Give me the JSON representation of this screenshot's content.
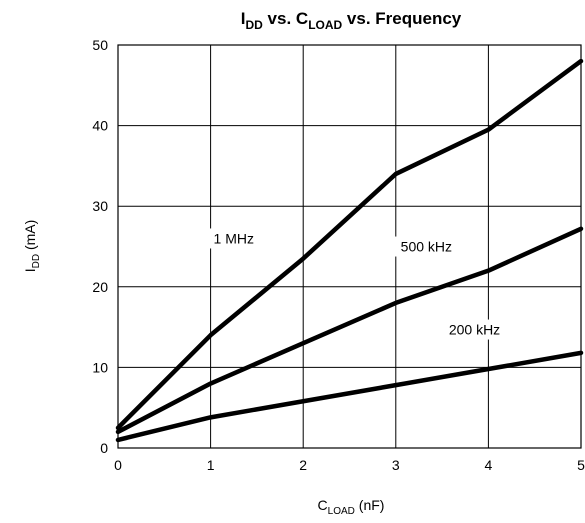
{
  "chart_data": {
    "type": "line",
    "title": {
      "main": "I",
      "main_sub": "DD",
      "rest1": " vs. C",
      "rest1_sub": "LOAD",
      "rest2": " vs. Frequency"
    },
    "xlabel": {
      "main": "C",
      "sub": "LOAD",
      "unit": " (nF)"
    },
    "ylabel": {
      "main": "I",
      "sub": "DD",
      "unit": " (mA)"
    },
    "xlim": [
      0,
      5
    ],
    "ylim": [
      0,
      50
    ],
    "x_ticks": [
      "0",
      "1",
      "2",
      "3",
      "4",
      "5"
    ],
    "y_ticks": [
      "0",
      "10",
      "20",
      "30",
      "40",
      "50"
    ],
    "grid": true,
    "legend": "inline labels",
    "x": [
      0,
      1,
      2,
      3,
      4,
      5
    ],
    "series": [
      {
        "name": "1 MHz",
        "values": [
          2.5,
          14,
          23.5,
          34,
          39.5,
          48
        ]
      },
      {
        "name": "500 kHz",
        "values": [
          2,
          8,
          13,
          18,
          22,
          27.2
        ]
      },
      {
        "name": "200 kHz",
        "values": [
          1,
          3.8,
          5.8,
          7.8,
          9.8,
          11.8
        ]
      }
    ]
  }
}
